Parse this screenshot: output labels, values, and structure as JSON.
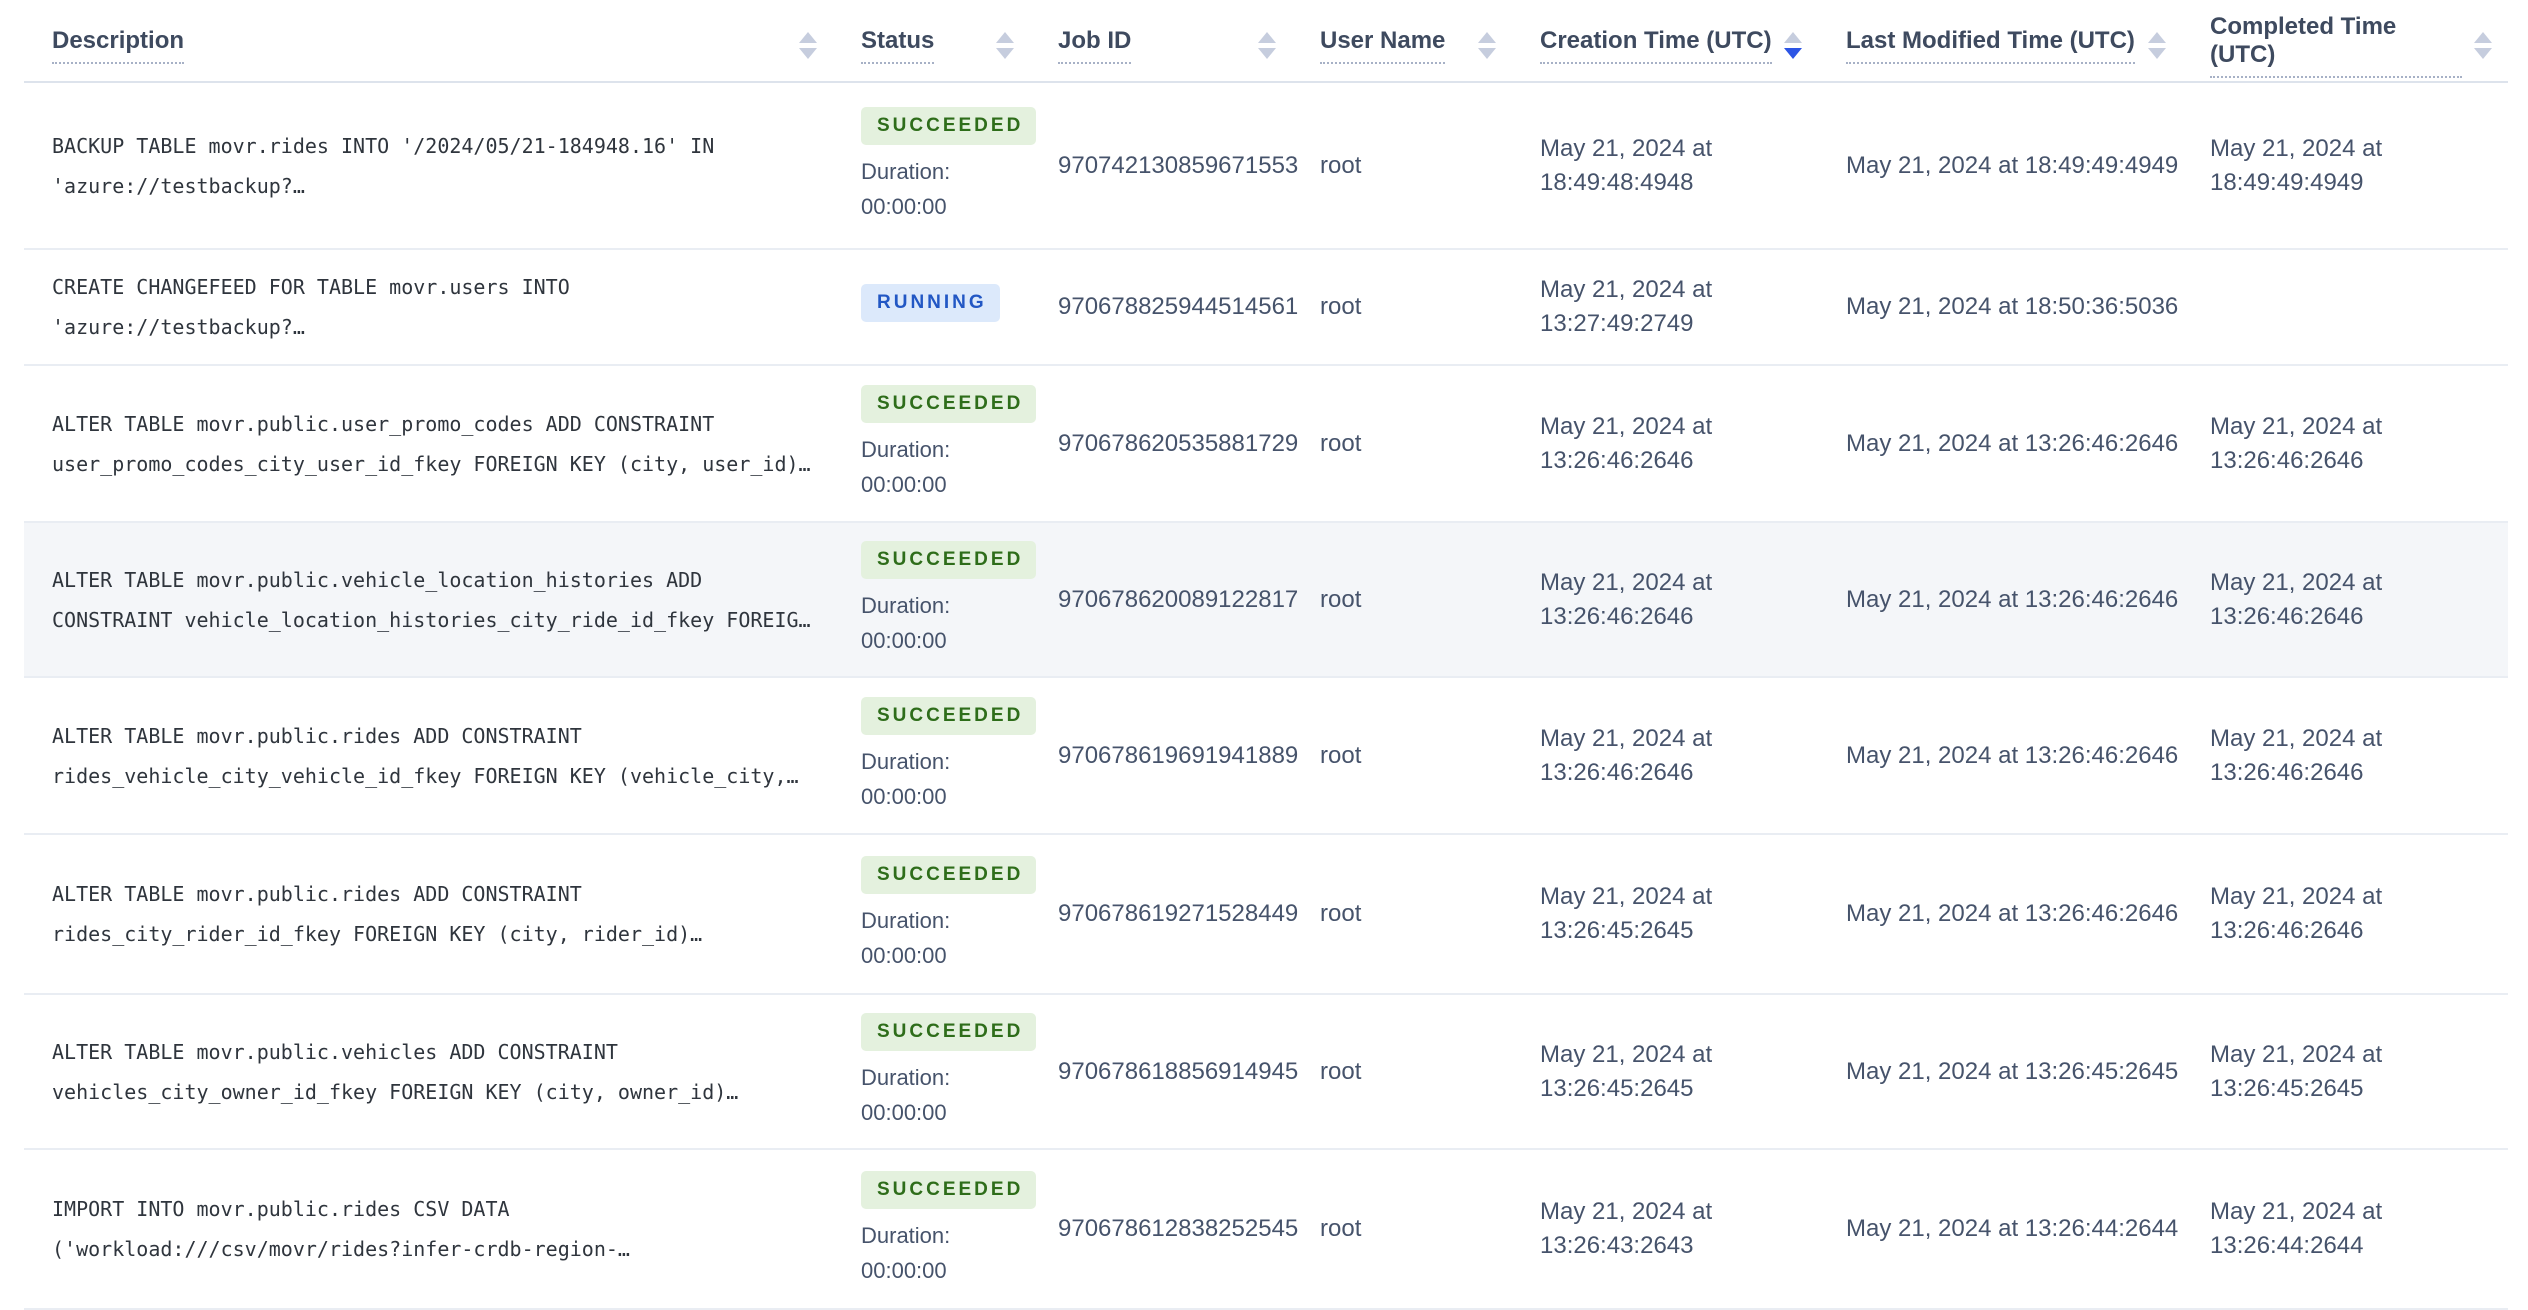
{
  "table": {
    "columns": [
      {
        "label": "Description",
        "sort": "none"
      },
      {
        "label": "Status",
        "sort": "none"
      },
      {
        "label": "Job ID",
        "sort": "none"
      },
      {
        "label": "User Name",
        "sort": "none"
      },
      {
        "label": "Creation Time (UTC)",
        "sort": "desc"
      },
      {
        "label": "Last Modified Time (UTC)",
        "sort": "none"
      },
      {
        "label": "Completed Time (UTC)",
        "sort": "none"
      }
    ],
    "rows": [
      {
        "description_lines": [
          "BACKUP TABLE movr.rides INTO '/2024/05/21-184948.16' IN",
          "'azure://testbackup?…"
        ],
        "status": "SUCCEEDED",
        "duration_label": "Duration:",
        "duration_value": "00:00:00",
        "job_id": "970742130859671553",
        "user_name": "root",
        "creation_time": [
          "May 21, 2024 at",
          "18:49:48:4948"
        ],
        "last_modified_time": "May 21, 2024 at 18:49:49:4949",
        "completed_time": [
          "May 21, 2024 at",
          "18:49:49:4949"
        ],
        "highlighted": false
      },
      {
        "description_lines": [
          "CREATE CHANGEFEED FOR TABLE movr.users INTO",
          "'azure://testbackup?…"
        ],
        "status": "RUNNING",
        "job_id": "970678825944514561",
        "user_name": "root",
        "creation_time": [
          "May 21, 2024 at",
          "13:27:49:2749"
        ],
        "last_modified_time": "May 21, 2024 at 18:50:36:5036",
        "highlighted": false
      },
      {
        "description_lines": [
          "ALTER TABLE movr.public.user_promo_codes ADD CONSTRAINT",
          "user_promo_codes_city_user_id_fkey FOREIGN KEY (city, user_id)…"
        ],
        "status": "SUCCEEDED",
        "duration_label": "Duration:",
        "duration_value": "00:00:00",
        "job_id": "970678620535881729",
        "user_name": "root",
        "creation_time": [
          "May 21, 2024 at",
          "13:26:46:2646"
        ],
        "last_modified_time": "May 21, 2024 at 13:26:46:2646",
        "completed_time": [
          "May 21, 2024 at",
          "13:26:46:2646"
        ],
        "highlighted": false
      },
      {
        "description_lines": [
          "ALTER TABLE movr.public.vehicle_location_histories ADD",
          "CONSTRAINT vehicle_location_histories_city_ride_id_fkey FOREIG…"
        ],
        "status": "SUCCEEDED",
        "duration_label": "Duration:",
        "duration_value": "00:00:00",
        "job_id": "970678620089122817",
        "user_name": "root",
        "creation_time": [
          "May 21, 2024 at",
          "13:26:46:2646"
        ],
        "last_modified_time": "May 21, 2024 at 13:26:46:2646",
        "completed_time": [
          "May 21, 2024 at",
          "13:26:46:2646"
        ],
        "highlighted": true
      },
      {
        "description_lines": [
          "ALTER TABLE movr.public.rides ADD CONSTRAINT",
          "rides_vehicle_city_vehicle_id_fkey FOREIGN KEY (vehicle_city,…"
        ],
        "status": "SUCCEEDED",
        "duration_label": "Duration:",
        "duration_value": "00:00:00",
        "job_id": "970678619691941889",
        "user_name": "root",
        "creation_time": [
          "May 21, 2024 at",
          "13:26:46:2646"
        ],
        "last_modified_time": "May 21, 2024 at 13:26:46:2646",
        "completed_time": [
          "May 21, 2024 at",
          "13:26:46:2646"
        ],
        "highlighted": false
      },
      {
        "description_lines": [
          "ALTER TABLE movr.public.rides ADD CONSTRAINT",
          "rides_city_rider_id_fkey FOREIGN KEY (city, rider_id)…"
        ],
        "status": "SUCCEEDED",
        "duration_label": "Duration:",
        "duration_value": "00:00:00",
        "job_id": "970678619271528449",
        "user_name": "root",
        "creation_time": [
          "May 21, 2024 at",
          "13:26:45:2645"
        ],
        "last_modified_time": "May 21, 2024 at 13:26:46:2646",
        "completed_time": [
          "May 21, 2024 at",
          "13:26:46:2646"
        ],
        "highlighted": false
      },
      {
        "description_lines": [
          "ALTER TABLE movr.public.vehicles ADD CONSTRAINT",
          "vehicles_city_owner_id_fkey FOREIGN KEY (city, owner_id)…"
        ],
        "status": "SUCCEEDED",
        "duration_label": "Duration:",
        "duration_value": "00:00:00",
        "job_id": "970678618856914945",
        "user_name": "root",
        "creation_time": [
          "May 21, 2024 at",
          "13:26:45:2645"
        ],
        "last_modified_time": "May 21, 2024 at 13:26:45:2645",
        "completed_time": [
          "May 21, 2024 at",
          "13:26:45:2645"
        ],
        "highlighted": false
      },
      {
        "description_lines": [
          "IMPORT INTO movr.public.rides CSV DATA",
          "('workload:///csv/movr/rides?infer-crdb-region-…"
        ],
        "status": "SUCCEEDED",
        "duration_label": "Duration:",
        "duration_value": "00:00:00",
        "job_id": "970678612838252545",
        "user_name": "root",
        "creation_time": [
          "May 21, 2024 at",
          "13:26:43:2643"
        ],
        "last_modified_time": "May 21, 2024 at 13:26:44:2644",
        "completed_time": [
          "May 21, 2024 at",
          "13:26:44:2644"
        ],
        "highlighted": false
      }
    ]
  },
  "colors": {
    "succeeded_badge_bg": "#e4f1de",
    "succeeded_badge_text": "#2e6d1a",
    "running_badge_bg": "#dce9fb",
    "running_badge_text": "#2257c4",
    "sort_active": "#2d55e5",
    "row_highlight_bg": "#f4f6f9"
  }
}
